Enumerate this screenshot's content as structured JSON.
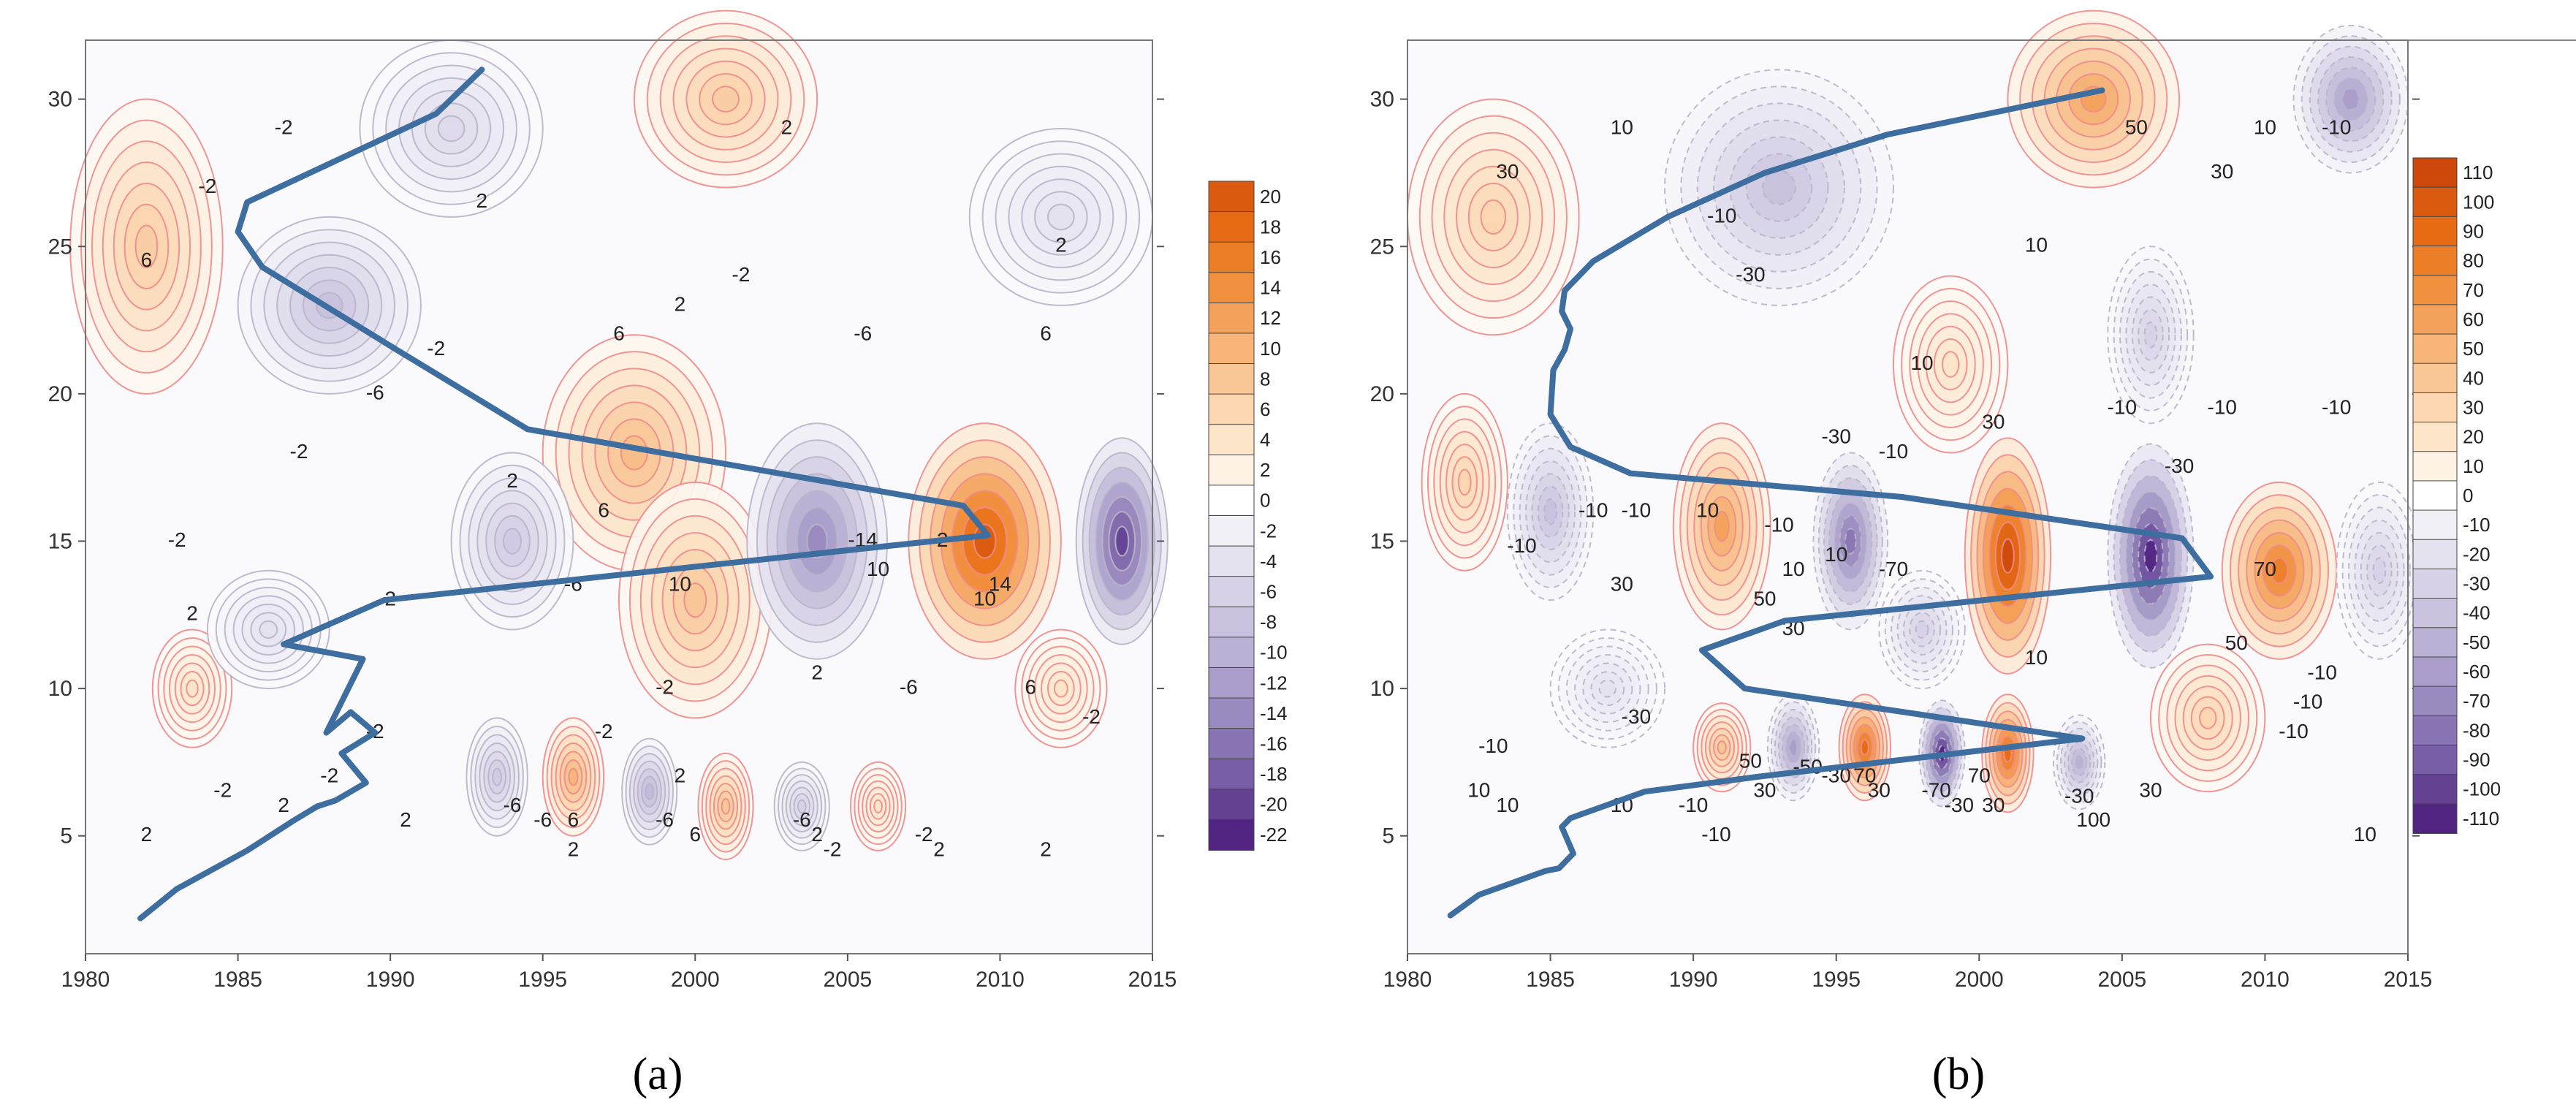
{
  "chart_data": [
    {
      "type": "heatmap",
      "panel_label": "a",
      "caption": "(a)",
      "xlabel": "",
      "ylabel": "",
      "xlim": [
        1980,
        2015
      ],
      "ylim": [
        1,
        32
      ],
      "x_ticks": [
        1980,
        1985,
        1990,
        1995,
        2000,
        2005,
        2010,
        2015
      ],
      "y_ticks": [
        5,
        10,
        15,
        20,
        25,
        30
      ],
      "colorbar_levels": [
        20,
        18,
        16,
        14,
        12,
        10,
        8,
        6,
        4,
        2,
        0,
        -2,
        -4,
        -6,
        -8,
        -10,
        -12,
        -14,
        -16,
        -18,
        -20,
        -22
      ],
      "colorbar_labels": [
        "20",
        "18",
        "16",
        "14",
        "12",
        "10",
        "8",
        "6",
        "4",
        "2",
        "0",
        "-2",
        "-4",
        "-6",
        "-8",
        "-10",
        "-12",
        "-14",
        "-16",
        "-18",
        "-20",
        "-22"
      ],
      "blobs": [
        {
          "x": 1982,
          "y": 25,
          "v": 7,
          "rx": 2.5,
          "ry": 5
        },
        {
          "x": 1992,
          "y": 29,
          "v": -5,
          "rx": 3,
          "ry": 3
        },
        {
          "x": 1988,
          "y": 23,
          "v": -8,
          "rx": 3,
          "ry": 3
        },
        {
          "x": 1998,
          "y": 18,
          "v": 9,
          "rx": 3,
          "ry": 4
        },
        {
          "x": 2000,
          "y": 13,
          "v": 8,
          "rx": 2.5,
          "ry": 4
        },
        {
          "x": 2004,
          "y": 15,
          "v": -14,
          "rx": 2.3,
          "ry": 4
        },
        {
          "x": 2009.5,
          "y": 15,
          "v": 20,
          "rx": 2.5,
          "ry": 4
        },
        {
          "x": 2014,
          "y": 15,
          "v": -20,
          "rx": 1.5,
          "ry": 3.5
        },
        {
          "x": 2001,
          "y": 30,
          "v": 7,
          "rx": 3,
          "ry": 3
        },
        {
          "x": 2012,
          "y": 26,
          "v": -4,
          "rx": 3,
          "ry": 3
        },
        {
          "x": 1994,
          "y": 15,
          "v": -7,
          "rx": 2,
          "ry": 3
        },
        {
          "x": 1983.5,
          "y": 10,
          "v": 4,
          "rx": 1.3,
          "ry": 2
        },
        {
          "x": 1993.5,
          "y": 7,
          "v": -7,
          "rx": 1,
          "ry": 2
        },
        {
          "x": 1996,
          "y": 7,
          "v": 10,
          "rx": 1,
          "ry": 2
        },
        {
          "x": 1998.5,
          "y": 6.5,
          "v": -9,
          "rx": 0.9,
          "ry": 1.8
        },
        {
          "x": 2001,
          "y": 6,
          "v": 8,
          "rx": 0.9,
          "ry": 1.8
        },
        {
          "x": 2003.5,
          "y": 6,
          "v": -6,
          "rx": 0.9,
          "ry": 1.5
        },
        {
          "x": 2006,
          "y": 6,
          "v": 4,
          "rx": 0.9,
          "ry": 1.5
        },
        {
          "x": 1986,
          "y": 12,
          "v": -4,
          "rx": 2,
          "ry": 2
        },
        {
          "x": 2012,
          "y": 10,
          "v": 4,
          "rx": 1.5,
          "ry": 2
        }
      ],
      "contour_labels": [
        {
          "x": 1984,
          "y": 27,
          "text": "-2"
        },
        {
          "x": 1986.5,
          "y": 29,
          "text": "-2"
        },
        {
          "x": 1982,
          "y": 24.5,
          "text": "6"
        },
        {
          "x": 1993,
          "y": 26.5,
          "text": "2"
        },
        {
          "x": 2003,
          "y": 29,
          "text": "2"
        },
        {
          "x": 2012,
          "y": 25,
          "text": "2"
        },
        {
          "x": 1991.5,
          "y": 21.5,
          "text": "-2"
        },
        {
          "x": 1989.5,
          "y": 20,
          "text": "-6"
        },
        {
          "x": 1997.5,
          "y": 22,
          "text": "6"
        },
        {
          "x": 1999.5,
          "y": 23,
          "text": "2"
        },
        {
          "x": 2001.5,
          "y": 24,
          "text": "-2"
        },
        {
          "x": 2005.5,
          "y": 22,
          "text": "-6"
        },
        {
          "x": 2011.5,
          "y": 22,
          "text": "6"
        },
        {
          "x": 1987,
          "y": 18,
          "text": "-2"
        },
        {
          "x": 1983,
          "y": 15,
          "text": "-2"
        },
        {
          "x": 1994,
          "y": 17,
          "text": "2"
        },
        {
          "x": 1997,
          "y": 16,
          "text": "6"
        },
        {
          "x": 2005.5,
          "y": 15,
          "text": "-14"
        },
        {
          "x": 2008,
          "y": 15,
          "text": "-2"
        },
        {
          "x": 2006,
          "y": 14,
          "text": "10"
        },
        {
          "x": 2010,
          "y": 13.5,
          "text": "14"
        },
        {
          "x": 2009.5,
          "y": 13,
          "text": "10"
        },
        {
          "x": 1996,
          "y": 13.5,
          "text": "-6"
        },
        {
          "x": 1999.5,
          "y": 13.5,
          "text": "10"
        },
        {
          "x": 1990,
          "y": 13,
          "text": "2"
        },
        {
          "x": 1983.5,
          "y": 12.5,
          "text": "2"
        },
        {
          "x": 2004,
          "y": 10.5,
          "text": "2"
        },
        {
          "x": 1999,
          "y": 10,
          "text": "-2"
        },
        {
          "x": 2007,
          "y": 10,
          "text": "-6"
        },
        {
          "x": 2011,
          "y": 10,
          "text": "6"
        },
        {
          "x": 2013,
          "y": 9,
          "text": "-2"
        },
        {
          "x": 1997,
          "y": 8.5,
          "text": "-2"
        },
        {
          "x": 1989.5,
          "y": 8.5,
          "text": "-2"
        },
        {
          "x": 1988,
          "y": 7,
          "text": "-2"
        },
        {
          "x": 1984.5,
          "y": 6.5,
          "text": "-2"
        },
        {
          "x": 1986.5,
          "y": 6,
          "text": "2"
        },
        {
          "x": 1990.5,
          "y": 5.5,
          "text": "2"
        },
        {
          "x": 1994,
          "y": 6,
          "text": "-6"
        },
        {
          "x": 1995,
          "y": 5.5,
          "text": "-6"
        },
        {
          "x": 1996,
          "y": 5.5,
          "text": "6"
        },
        {
          "x": 1999,
          "y": 5.5,
          "text": "-6"
        },
        {
          "x": 1999.5,
          "y": 7,
          "text": "2"
        },
        {
          "x": 2000,
          "y": 5,
          "text": "6"
        },
        {
          "x": 1996,
          "y": 4.5,
          "text": "2"
        },
        {
          "x": 2003.5,
          "y": 5.5,
          "text": "-6"
        },
        {
          "x": 2004.5,
          "y": 4.5,
          "text": "-2"
        },
        {
          "x": 2004,
          "y": 5,
          "text": "2"
        },
        {
          "x": 2007.5,
          "y": 5,
          "text": "-2"
        },
        {
          "x": 2008,
          "y": 4.5,
          "text": "2"
        },
        {
          "x": 2011.5,
          "y": 4.5,
          "text": "2"
        },
        {
          "x": 1982,
          "y": 5,
          "text": "2"
        }
      ],
      "series": [
        {
          "name": "trajectory",
          "x": [
            1981.8,
            1983,
            1985.3,
            1986.8,
            1987.6,
            1988.2,
            1989.2,
            1988.4,
            1989.5,
            1988.7,
            1987.9,
            1989.1,
            1986.5,
            1989.8,
            2009.6,
            2008.8,
            1994.5,
            1990.2,
            1985.8,
            1985,
            1985.3,
            1991.5,
            1993
          ],
          "y": [
            2.2,
            3.2,
            4.5,
            5.5,
            6.0,
            6.2,
            6.8,
            7.8,
            8.5,
            9.2,
            8.5,
            11.0,
            11.5,
            13.0,
            15.2,
            16.2,
            18.8,
            21.5,
            24.3,
            25.5,
            26.5,
            29.5,
            31
          ]
        }
      ]
    },
    {
      "type": "heatmap",
      "panel_label": "b",
      "caption": "(b)",
      "xlabel": "",
      "ylabel": "",
      "xlim": [
        1980,
        2015
      ],
      "ylim": [
        1,
        32
      ],
      "x_ticks": [
        1980,
        1985,
        1990,
        1995,
        2000,
        2005,
        2010,
        2015
      ],
      "y_ticks": [
        5,
        10,
        15,
        20,
        25,
        30
      ],
      "colorbar_levels": [
        110,
        100,
        90,
        80,
        70,
        60,
        50,
        40,
        30,
        20,
        10,
        0,
        -10,
        -20,
        -30,
        -40,
        -50,
        -60,
        -70,
        -80,
        -90,
        -100,
        -110
      ],
      "colorbar_labels": [
        "110",
        "100",
        "90",
        "80",
        "70",
        "60",
        "50",
        "40",
        "30",
        "20",
        "10",
        "0",
        "-10",
        "-20",
        "-30",
        "-40",
        "-50",
        "-60",
        "-70",
        "-80",
        "-90",
        "-100",
        "-110"
      ],
      "blobs": [
        {
          "x": 1983,
          "y": 26,
          "v": 30,
          "rx": 3,
          "ry": 4
        },
        {
          "x": 1993,
          "y": 27,
          "v": -40,
          "rx": 4,
          "ry": 4
        },
        {
          "x": 2004,
          "y": 30,
          "v": 60,
          "rx": 3,
          "ry": 3
        },
        {
          "x": 2013,
          "y": 30,
          "v": -60,
          "rx": 2,
          "ry": 2.5
        },
        {
          "x": 1985,
          "y": 16,
          "v": -40,
          "rx": 1.5,
          "ry": 3
        },
        {
          "x": 1991,
          "y": 15.5,
          "v": 60,
          "rx": 1.7,
          "ry": 3.5
        },
        {
          "x": 1995.5,
          "y": 15,
          "v": -80,
          "rx": 1.3,
          "ry": 3
        },
        {
          "x": 2001,
          "y": 14.5,
          "v": 110,
          "rx": 1.5,
          "ry": 4
        },
        {
          "x": 2006,
          "y": 14.5,
          "v": -110,
          "rx": 1.5,
          "ry": 3.8
        },
        {
          "x": 2010.5,
          "y": 14,
          "v": 80,
          "rx": 2,
          "ry": 3
        },
        {
          "x": 2014,
          "y": 14,
          "v": -30,
          "rx": 1.5,
          "ry": 3
        },
        {
          "x": 1982,
          "y": 17,
          "v": 30,
          "rx": 1.5,
          "ry": 3
        },
        {
          "x": 1993.5,
          "y": 8,
          "v": -60,
          "rx": 0.9,
          "ry": 1.8
        },
        {
          "x": 1996,
          "y": 8,
          "v": 90,
          "rx": 0.9,
          "ry": 1.8
        },
        {
          "x": 1998.7,
          "y": 7.8,
          "v": -110,
          "rx": 0.8,
          "ry": 1.8
        },
        {
          "x": 2001,
          "y": 7.8,
          "v": 90,
          "rx": 0.9,
          "ry": 2
        },
        {
          "x": 2003.5,
          "y": 7.5,
          "v": -50,
          "rx": 0.9,
          "ry": 1.6
        },
        {
          "x": 1991,
          "y": 8,
          "v": 40,
          "rx": 1,
          "ry": 1.5
        },
        {
          "x": 1998,
          "y": 12,
          "v": -30,
          "rx": 1.5,
          "ry": 2
        },
        {
          "x": 2008,
          "y": 9,
          "v": 30,
          "rx": 2,
          "ry": 2.5
        },
        {
          "x": 1987,
          "y": 10,
          "v": -20,
          "rx": 2,
          "ry": 2
        },
        {
          "x": 1999,
          "y": 21,
          "v": 20,
          "rx": 2,
          "ry": 3
        },
        {
          "x": 2006,
          "y": 22,
          "v": -30,
          "rx": 1.5,
          "ry": 3
        }
      ],
      "contour_labels": [
        {
          "x": 1983.5,
          "y": 27.5,
          "text": "30"
        },
        {
          "x": 1987.5,
          "y": 29,
          "text": "10"
        },
        {
          "x": 1991,
          "y": 26,
          "text": "-10"
        },
        {
          "x": 1992,
          "y": 24,
          "text": "-30"
        },
        {
          "x": 2002,
          "y": 25,
          "text": "10"
        },
        {
          "x": 2005.5,
          "y": 29,
          "text": "50"
        },
        {
          "x": 2008.5,
          "y": 27.5,
          "text": "30"
        },
        {
          "x": 2010,
          "y": 29,
          "text": "10"
        },
        {
          "x": 2012.5,
          "y": 29,
          "text": "-10"
        },
        {
          "x": 1998,
          "y": 21,
          "text": "10"
        },
        {
          "x": 2000.5,
          "y": 19,
          "text": "30"
        },
        {
          "x": 2005,
          "y": 19.5,
          "text": "-10"
        },
        {
          "x": 2008.5,
          "y": 19.5,
          "text": "-10"
        },
        {
          "x": 2012.5,
          "y": 19.5,
          "text": "-10"
        },
        {
          "x": 1995,
          "y": 18.5,
          "text": "-30"
        },
        {
          "x": 1997,
          "y": 18,
          "text": "-10"
        },
        {
          "x": 2007,
          "y": 17.5,
          "text": "-30"
        },
        {
          "x": 1986.5,
          "y": 16,
          "text": "-10"
        },
        {
          "x": 1988,
          "y": 16,
          "text": "-10"
        },
        {
          "x": 1990.5,
          "y": 16,
          "text": "10"
        },
        {
          "x": 1984,
          "y": 14.8,
          "text": "-10"
        },
        {
          "x": 1987.5,
          "y": 13.5,
          "text": "30"
        },
        {
          "x": 1993,
          "y": 15.5,
          "text": "-10"
        },
        {
          "x": 1993.5,
          "y": 14,
          "text": "10"
        },
        {
          "x": 1995,
          "y": 14.5,
          "text": "10"
        },
        {
          "x": 1997,
          "y": 14,
          "text": "-70"
        },
        {
          "x": 1992.5,
          "y": 13,
          "text": "50"
        },
        {
          "x": 1993.5,
          "y": 12,
          "text": "30"
        },
        {
          "x": 2010,
          "y": 14,
          "text": "70"
        },
        {
          "x": 2009,
          "y": 11.5,
          "text": "50"
        },
        {
          "x": 2012,
          "y": 10.5,
          "text": "-10"
        },
        {
          "x": 2011.5,
          "y": 9.5,
          "text": "-10"
        },
        {
          "x": 2011,
          "y": 8.5,
          "text": "-10"
        },
        {
          "x": 2002,
          "y": 11,
          "text": "10"
        },
        {
          "x": 1988,
          "y": 9,
          "text": "-30"
        },
        {
          "x": 1983,
          "y": 8,
          "text": "-10"
        },
        {
          "x": 1982.5,
          "y": 6.5,
          "text": "10"
        },
        {
          "x": 1983.5,
          "y": 6,
          "text": "10"
        },
        {
          "x": 1987.5,
          "y": 6,
          "text": "10"
        },
        {
          "x": 1990,
          "y": 6,
          "text": "-10"
        },
        {
          "x": 1990.8,
          "y": 5,
          "text": "-10"
        },
        {
          "x": 1992,
          "y": 7.5,
          "text": "50"
        },
        {
          "x": 1992.5,
          "y": 6.5,
          "text": "30"
        },
        {
          "x": 1994,
          "y": 7.3,
          "text": "-50"
        },
        {
          "x": 1995,
          "y": 7,
          "text": "-30"
        },
        {
          "x": 1996,
          "y": 7,
          "text": "70"
        },
        {
          "x": 1996.5,
          "y": 6.5,
          "text": "30"
        },
        {
          "x": 1998.5,
          "y": 6.5,
          "text": "-70"
        },
        {
          "x": 1999.3,
          "y": 6,
          "text": "-30"
        },
        {
          "x": 2000,
          "y": 7,
          "text": "70"
        },
        {
          "x": 2000.5,
          "y": 6,
          "text": "30"
        },
        {
          "x": 2003.5,
          "y": 6.3,
          "text": "-30"
        },
        {
          "x": 2004,
          "y": 5.5,
          "text": "100"
        },
        {
          "x": 2006,
          "y": 6.5,
          "text": "30"
        },
        {
          "x": 2013.5,
          "y": 5,
          "text": "10"
        }
      ],
      "series": [
        {
          "name": "trajectory",
          "x": [
            1981.5,
            1982.5,
            1984.8,
            1985.3,
            1985.8,
            1985.4,
            1985.7,
            1988.3,
            1992.2,
            2003.6,
            1991.8,
            1990.3,
            1993.2,
            2008.1,
            2007.1,
            1997.3,
            1987.8,
            1985.7,
            1985,
            1985.1,
            1985.5,
            1985.7,
            1985.4,
            1985.5,
            1986.5,
            1989.1,
            1992.5,
            1996.8,
            2004.3
          ],
          "y": [
            2.3,
            3.0,
            3.8,
            3.9,
            4.4,
            5.3,
            5.6,
            6.5,
            7.0,
            8.3,
            10.0,
            11.3,
            12.3,
            13.8,
            15.1,
            16.5,
            17.3,
            18.2,
            19.3,
            20.8,
            21.5,
            22.2,
            22.8,
            23.5,
            24.5,
            26.0,
            27.5,
            28.8,
            30.3
          ]
        }
      ]
    }
  ]
}
